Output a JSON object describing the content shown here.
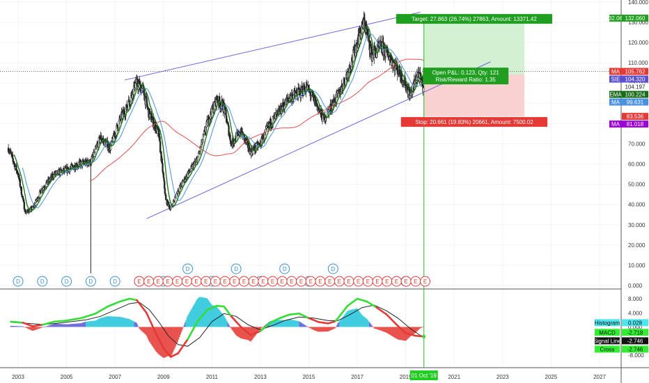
{
  "chart_data": [
    {
      "type": "line",
      "subtype": "candlestick-with-overlays",
      "title": "",
      "y_scale": "linear",
      "ylim": [
        0,
        140
      ],
      "xlim": [
        2002.6,
        2028.0
      ],
      "y_ticks": [
        {
          "value": 0,
          "label": "0.000"
        },
        {
          "value": 10,
          "label": "10.000"
        },
        {
          "value": 20,
          "label": "20.000"
        },
        {
          "value": 30,
          "label": "30.000"
        },
        {
          "value": 40,
          "label": "40.000"
        },
        {
          "value": 50,
          "label": "50.000"
        },
        {
          "value": 60,
          "label": "60.000"
        },
        {
          "value": 70,
          "label": "70.000"
        },
        {
          "value": 80,
          "label": "80.000"
        },
        {
          "value": 90,
          "label": "90.000"
        },
        {
          "value": 100,
          "label": "100.000"
        },
        {
          "value": 110,
          "label": "110.000"
        },
        {
          "value": 120,
          "label": "120.000"
        },
        {
          "value": 130,
          "label": "130.000"
        },
        {
          "value": 140,
          "label": "140.000"
        }
      ],
      "x_ticks": [
        "2003",
        "2005",
        "2007",
        "2009",
        "2011",
        "2013",
        "2015",
        "2017",
        "2019",
        "2021",
        "2023",
        "2025",
        "2027"
      ],
      "price_path": [
        [
          2002.6,
          68
        ],
        [
          2003.0,
          55
        ],
        [
          2003.3,
          36
        ],
        [
          2003.6,
          38
        ],
        [
          2004.0,
          48
        ],
        [
          2004.5,
          55
        ],
        [
          2005.0,
          57
        ],
        [
          2005.5,
          60
        ],
        [
          2006.0,
          61
        ],
        [
          2006.4,
          73
        ],
        [
          2006.8,
          68
        ],
        [
          2007.2,
          82
        ],
        [
          2007.5,
          88
        ],
        [
          2007.85,
          100
        ],
        [
          2008.15,
          97
        ],
        [
          2008.4,
          85
        ],
        [
          2008.8,
          75
        ],
        [
          2009.1,
          42
        ],
        [
          2009.3,
          38
        ],
        [
          2009.6,
          47
        ],
        [
          2010.0,
          55
        ],
        [
          2010.4,
          62
        ],
        [
          2010.8,
          80
        ],
        [
          2011.2,
          92
        ],
        [
          2011.5,
          88
        ],
        [
          2011.8,
          70
        ],
        [
          2012.2,
          76
        ],
        [
          2012.6,
          66
        ],
        [
          2013.0,
          70
        ],
        [
          2013.4,
          80
        ],
        [
          2013.8,
          86
        ],
        [
          2014.2,
          93
        ],
        [
          2014.6,
          95
        ],
        [
          2014.9,
          98
        ],
        [
          2015.3,
          90
        ],
        [
          2015.6,
          82
        ],
        [
          2015.9,
          88
        ],
        [
          2016.3,
          96
        ],
        [
          2016.7,
          108
        ],
        [
          2017.1,
          124
        ],
        [
          2017.3,
          130
        ],
        [
          2017.6,
          114
        ],
        [
          2018.0,
          118
        ],
        [
          2018.4,
          112
        ],
        [
          2018.8,
          104
        ],
        [
          2019.2,
          94
        ],
        [
          2019.5,
          105
        ],
        [
          2019.75,
          97
        ]
      ],
      "series": [
        {
          "name": "EMA",
          "color": "#1a7a1a",
          "last": 100.224
        },
        {
          "name": "MA",
          "color": "#e54b4b",
          "last": 105.762
        },
        {
          "name": "MA",
          "color": "#4a90e2",
          "last": 99.631
        },
        {
          "name": "MA",
          "color": "#9b00d6",
          "last": 81.018
        }
      ],
      "trend_channel": {
        "upper": [
          [
            2007.4,
            101.5
          ],
          [
            2019.6,
            135.0
          ]
        ],
        "lower": [
          [
            2008.3,
            33.0
          ],
          [
            2022.5,
            110.5
          ]
        ],
        "upper_end_x": 2019.6,
        "lower_end_x": 2022.5
      },
      "position": {
        "entry": 104.197,
        "target": 132.06,
        "stop": 83.536,
        "start_x": 2019.75,
        "end_x": 2023.9,
        "target_label": "Target: 27.863 (26.74%) 27863, Amount: 13371.42",
        "stop_label": "Stop: 20.661 (19.83%) 20661, Amount: 7500.02",
        "pnl_label_1": "Open P&L: 0.123, Qty: 121",
        "pnl_label_2": "Risk/Reward Ratio: 1.35"
      },
      "reference_line": 105.762,
      "price_badges": [
        {
          "text": "132.060",
          "value": 132.06,
          "color": "#1f9e1f"
        },
        {
          "text": "MA",
          "value": 105.762,
          "color": "#e53935",
          "suffix": "105.762"
        },
        {
          "text": "SIE",
          "value": 104.32,
          "color": "#5a4fcf",
          "suffix": "104.320"
        },
        {
          "text": "",
          "value": 104.197,
          "color": "#ffffff",
          "suffix": "104.197"
        },
        {
          "text": "EMA",
          "value": 100.224,
          "color": "#1a6b1a",
          "suffix": "100.224"
        },
        {
          "text": "MA",
          "value": 99.631,
          "color": "#4a90e2",
          "suffix": "99.631"
        },
        {
          "text": "",
          "value": 83.536,
          "color": "#e53935",
          "suffix": "83.536"
        },
        {
          "text": "MA",
          "value": 81.018,
          "color": "#9b00d6",
          "suffix": "81.018"
        }
      ],
      "dividend_markers": [
        2003.0,
        2004.0,
        2005.0,
        2006.0,
        2007.0,
        2008.0,
        2009.0,
        2010.0,
        2011.0,
        2012.0,
        2013.0,
        2014.0,
        2015.0,
        2016.0,
        2019.0
      ],
      "earnings_markers_start": 2008.0,
      "earnings_markers_end": 2019.8,
      "earnings_markers_count": 31,
      "date_badge": "01 Oct '19"
    },
    {
      "type": "line",
      "subtype": "macd",
      "title": "",
      "ylim": [
        -10,
        10
      ],
      "y_ticks": [
        {
          "value": 8,
          "label": "8.000"
        },
        {
          "value": 4,
          "label": "4.000"
        },
        {
          "value": 0,
          "label": "0.000"
        },
        {
          "value": -4,
          "label": "-4.000"
        },
        {
          "value": -8,
          "label": "-8.000"
        }
      ],
      "series": [
        {
          "name": "MACD",
          "color": "#e53935",
          "last": -2.718
        },
        {
          "name": "Signal Line",
          "color": "#222222",
          "last": -2.746
        },
        {
          "name": "Histogram",
          "color": "#26c6da",
          "last": 0.028
        },
        {
          "name": "Cross",
          "color": "#33dd33",
          "last": -2.746
        }
      ],
      "legend_badges": [
        {
          "label": "Histogram",
          "value": "0.028",
          "color": "#4ee6ee"
        },
        {
          "label": "MACD",
          "value": "-2.718",
          "color": "#33ee33"
        },
        {
          "label": "Signal Line",
          "value": "-2.746",
          "color": "#111111"
        },
        {
          "label": "Cross",
          "value": "-2.746",
          "color": "#33ee33"
        }
      ],
      "macd_path": [
        [
          2002.7,
          1.5
        ],
        [
          2003.2,
          1.2
        ],
        [
          2003.6,
          0.2
        ],
        [
          2004.0,
          0.6
        ],
        [
          2004.5,
          1.5
        ],
        [
          2005.0,
          1.8
        ],
        [
          2005.6,
          2.5
        ],
        [
          2006.2,
          3.8
        ],
        [
          2006.7,
          5.8
        ],
        [
          2007.2,
          7.2
        ],
        [
          2007.6,
          8.0
        ],
        [
          2007.9,
          7.6
        ],
        [
          2008.3,
          4.0
        ],
        [
          2008.7,
          -2.0
        ],
        [
          2009.0,
          -6.0
        ],
        [
          2009.3,
          -8.5
        ],
        [
          2009.6,
          -7.5
        ],
        [
          2010.0,
          -3.5
        ],
        [
          2010.4,
          1.5
        ],
        [
          2010.8,
          4.8
        ],
        [
          2011.2,
          6.0
        ],
        [
          2011.5,
          5.8
        ],
        [
          2011.8,
          3.0
        ],
        [
          2012.2,
          0.0
        ],
        [
          2012.6,
          -2.3
        ],
        [
          2013.0,
          -1.2
        ],
        [
          2013.4,
          1.2
        ],
        [
          2013.8,
          2.5
        ],
        [
          2014.2,
          3.5
        ],
        [
          2014.6,
          3.8
        ],
        [
          2015.0,
          2.5
        ],
        [
          2015.4,
          1.4
        ],
        [
          2015.8,
          1.0
        ],
        [
          2016.1,
          1.6
        ],
        [
          2016.6,
          6.0
        ],
        [
          2017.0,
          8.0
        ],
        [
          2017.4,
          7.2
        ],
        [
          2017.8,
          5.5
        ],
        [
          2018.2,
          3.6
        ],
        [
          2018.6,
          0.8
        ],
        [
          2019.0,
          -1.8
        ],
        [
          2019.4,
          -2.5
        ],
        [
          2019.75,
          -2.718
        ]
      ],
      "signal_path": [
        [
          2002.7,
          1.3
        ],
        [
          2003.4,
          1.0
        ],
        [
          2004.0,
          0.7
        ],
        [
          2004.6,
          1.0
        ],
        [
          2005.2,
          1.5
        ],
        [
          2005.8,
          2.0
        ],
        [
          2006.4,
          3.0
        ],
        [
          2007.0,
          4.8
        ],
        [
          2007.6,
          6.6
        ],
        [
          2008.0,
          7.0
        ],
        [
          2008.4,
          5.0
        ],
        [
          2008.8,
          1.5
        ],
        [
          2009.2,
          -2.5
        ],
        [
          2009.6,
          -5.0
        ],
        [
          2010.0,
          -5.5
        ],
        [
          2010.5,
          -3.0
        ],
        [
          2011.0,
          1.5
        ],
        [
          2011.5,
          3.8
        ],
        [
          2012.0,
          3.0
        ],
        [
          2012.5,
          0.6
        ],
        [
          2013.0,
          -0.8
        ],
        [
          2013.5,
          0.4
        ],
        [
          2014.0,
          1.8
        ],
        [
          2014.6,
          2.8
        ],
        [
          2015.2,
          2.5
        ],
        [
          2015.8,
          1.8
        ],
        [
          2016.2,
          1.8
        ],
        [
          2016.7,
          3.5
        ],
        [
          2017.2,
          5.5
        ],
        [
          2017.7,
          6.2
        ],
        [
          2018.2,
          4.6
        ],
        [
          2018.7,
          2.4
        ],
        [
          2019.2,
          -0.5
        ],
        [
          2019.6,
          -2.4
        ],
        [
          2019.75,
          -2.746
        ]
      ]
    }
  ]
}
